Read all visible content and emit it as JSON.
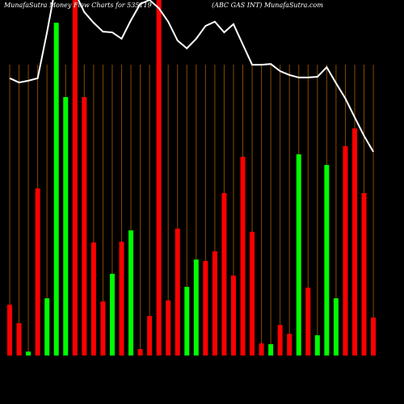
{
  "chart_data": {
    "type": "bar",
    "title": "MunafaSutra  Money  Flow  Charts for 535119",
    "subtitle": "(ABC GAS INT) MunafaSutra.com",
    "values": [
      14.3,
      9.1,
      1.1,
      47.0,
      16.1,
      93.6,
      72.7,
      100,
      72.7,
      31.8,
      15.2,
      23.0,
      32.0,
      35.2,
      1.8,
      11.1,
      100,
      15.5,
      35.7,
      19.3,
      27.0,
      26.6,
      29.3,
      45.7,
      22.5,
      55.9,
      34.8,
      3.4,
      3.2,
      8.6,
      6.1,
      56.6,
      19.1,
      5.7,
      53.6,
      16.1,
      58.9,
      63.9,
      45.7,
      10.7
    ],
    "colors": [
      "#ff0000",
      "#ff0000",
      "#00ff00",
      "#ff0000",
      "#00ff00",
      "#00ff00",
      "#00ff00",
      "#ff0000",
      "#ff0000",
      "#ff0000",
      "#ff0000",
      "#00ff00",
      "#ff0000",
      "#00ff00",
      "#ff0000",
      "#ff0000",
      "#ff0000",
      "#ff0000",
      "#ff0000",
      "#00ff00",
      "#00ff00",
      "#ff0000",
      "#ff0000",
      "#ff0000",
      "#ff0000",
      "#ff0000",
      "#ff0000",
      "#ff0000",
      "#00ff00",
      "#ff0000",
      "#ff0000",
      "#00ff00",
      "#ff0000",
      "#00ff00",
      "#00ff00",
      "#00ff00",
      "#ff0000",
      "#ff0000",
      "#ff0000",
      "#ff0000"
    ],
    "ylim": [
      0,
      100
    ],
    "line": {
      "color": "#ffffff",
      "values": [
        78.0,
        76.8,
        77.3,
        78.0,
        90.9,
        105,
        105,
        102,
        96.6,
        93.6,
        91.1,
        90.9,
        89.1,
        94.3,
        98.9,
        100,
        97.7,
        93.9,
        88.6,
        86.4,
        89.1,
        92.7,
        93.9,
        90.9,
        93.2,
        87.5,
        81.8,
        81.8,
        82.0,
        80.0,
        78.9,
        78.2,
        78.2,
        78.4,
        81.1,
        76.6,
        72.3,
        67.0,
        61.8,
        57.3
      ]
    },
    "y2lim": [
      0,
      100
    ]
  }
}
